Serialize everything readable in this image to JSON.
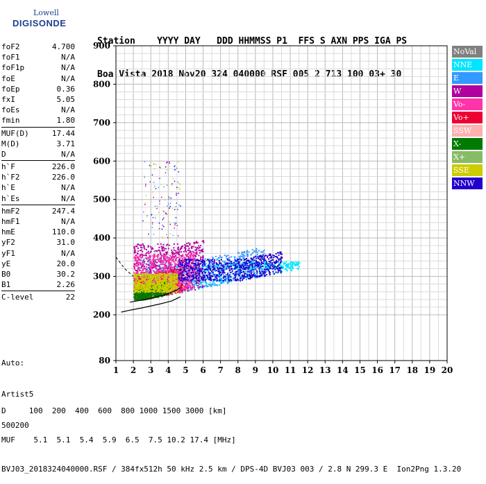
{
  "logo": {
    "top": "Lowell",
    "bottom": "DIGISONDE"
  },
  "header": {
    "line1": "Station    YYYY DAY   DDD HHMMSS P1  FFS S AXN PPS IGA PS",
    "line2": "Boa Vista 2018 Nov20 324 040000 RSF 005 2 713 100 03+ 30"
  },
  "params": [
    [
      {
        "k": "foF2",
        "v": "4.700"
      },
      {
        "k": "foF1",
        "v": "N/A"
      },
      {
        "k": "foF1p",
        "v": "N/A"
      },
      {
        "k": "foE",
        "v": "N/A"
      },
      {
        "k": "foEp",
        "v": "0.36"
      },
      {
        "k": "fxI",
        "v": "5.05"
      },
      {
        "k": "foEs",
        "v": "N/A"
      },
      {
        "k": "fmin",
        "v": "1.80"
      }
    ],
    [
      {
        "k": "MUF(D)",
        "v": "17.44"
      },
      {
        "k": "M(D)",
        "v": "3.71"
      },
      {
        "k": "D",
        "v": "N/A"
      }
    ],
    [
      {
        "k": "h`F",
        "v": "226.0"
      },
      {
        "k": "h`F2",
        "v": "226.0"
      },
      {
        "k": "h`E",
        "v": "N/A"
      },
      {
        "k": "h`Es",
        "v": "N/A"
      }
    ],
    [
      {
        "k": "hmF2",
        "v": "247.4"
      },
      {
        "k": "hmF1",
        "v": "N/A"
      },
      {
        "k": "hmE",
        "v": "110.0"
      },
      {
        "k": "yF2",
        "v": "31.0"
      },
      {
        "k": "yF1",
        "v": "N/A"
      },
      {
        "k": "yE",
        "v": "20.0"
      },
      {
        "k": "B0",
        "v": "30.2"
      },
      {
        "k": "B1",
        "v": "2.26"
      }
    ],
    [
      {
        "k": "C-level",
        "v": "22"
      }
    ]
  ],
  "auto": {
    "line1": "Auto:",
    "line2": "Artist5",
    "line3": "500200"
  },
  "legend": [
    {
      "label": "NoVal",
      "bg": "#808080",
      "fg": "#ffffff"
    },
    {
      "label": "NNE",
      "bg": "#00e5ff",
      "fg": "#ffffff"
    },
    {
      "label": "E",
      "bg": "#3399ff",
      "fg": "#ffffff"
    },
    {
      "label": "W",
      "bg": "#b0009f",
      "fg": "#ffffff"
    },
    {
      "label": "Vo-",
      "bg": "#ff33aa",
      "fg": "#ffffff"
    },
    {
      "label": "Vo+",
      "bg": "#ee0033",
      "fg": "#ffffff"
    },
    {
      "label": "SSW",
      "bg": "#ffb0b0",
      "fg": "#ffffff"
    },
    {
      "label": "X-",
      "bg": "#007a00",
      "fg": "#ffffff"
    },
    {
      "label": "X+",
      "bg": "#88bb66",
      "fg": "#ffffff"
    },
    {
      "label": "SSE",
      "bg": "#cccc00",
      "fg": "#ffffff"
    },
    {
      "label": "NNW",
      "bg": "#2200cc",
      "fg": "#ffffff"
    }
  ],
  "footer": {
    "line1": "D     100  200  400  600  800 1000 1500 3000 [km]",
    "line2": "MUF    5.1  5.1  5.4  5.9  6.5  7.5 10.2 17.4 [MHz]",
    "line3": "BVJ03_2018324040000.RSF / 384fx512h 50 kHz 2.5 km / DPS-4D BVJ03 003 / 2.8 N 299.3 E  Ion2Png 1.3.20"
  },
  "chart_data": {
    "type": "scatter",
    "x_ticks": [
      "1",
      "2",
      "3",
      "4",
      "5",
      "6",
      "7",
      "8",
      "9",
      "10",
      "11",
      "12",
      "13",
      "14",
      "15",
      "16",
      "17",
      "18",
      "19",
      "20"
    ],
    "y_ticks": [
      "80",
      "200",
      "300",
      "400",
      "500",
      "600",
      "700",
      "800",
      "900"
    ],
    "xlim": [
      1,
      20
    ],
    "ylim": [
      80,
      900
    ],
    "y_axis_note": "non-linear: 80 at bottom, then 200..900 evenly spaced",
    "grid": true,
    "legend_position": "right",
    "clusters": [
      {
        "name": "NNE",
        "f": [
          2.0,
          11.5
        ],
        "h": [
          240,
          340
        ],
        "color": "#00e5ff"
      },
      {
        "name": "E",
        "f": [
          2.2,
          9.5
        ],
        "h": [
          270,
          380
        ],
        "color": "#3399ff"
      },
      {
        "name": "W",
        "f": [
          2.0,
          6.0
        ],
        "h": [
          260,
          440
        ],
        "color": "#b0009f"
      },
      {
        "name": "Vo+",
        "f": [
          2.0,
          4.8
        ],
        "h": [
          240,
          330
        ],
        "color": "#ee0033"
      },
      {
        "name": "Vo-",
        "f": [
          2.0,
          5.5
        ],
        "h": [
          260,
          400
        ],
        "color": "#ff33aa"
      },
      {
        "name": "NNW",
        "f": [
          4.5,
          10.5
        ],
        "h": [
          290,
          370
        ],
        "color": "#2200cc"
      },
      {
        "name": "X-",
        "f": [
          2.0,
          4.0
        ],
        "h": [
          240,
          290
        ],
        "color": "#007a00"
      },
      {
        "name": "SSE",
        "f": [
          2.0,
          4.5
        ],
        "h": [
          260,
          330
        ],
        "color": "#cccc00"
      }
    ],
    "traces": [
      {
        "name": "F2-virtual-height-profile",
        "f": [
          1.3,
          1.8,
          2.5,
          3.5,
          4.2,
          4.7
        ],
        "h": [
          207,
          212,
          218,
          228,
          236,
          247
        ]
      },
      {
        "name": "O-trace-fit",
        "f": [
          1.8,
          2.2,
          3.0,
          4.0,
          4.5,
          4.7
        ],
        "h": [
          233,
          236,
          243,
          255,
          265,
          270
        ]
      }
    ]
  }
}
